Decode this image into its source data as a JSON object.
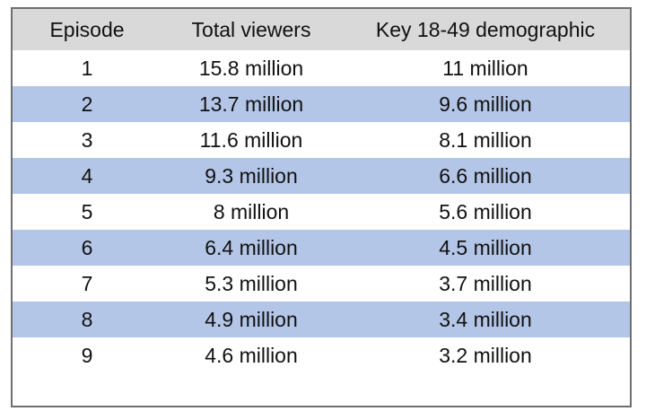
{
  "table": {
    "headers": [
      "Episode",
      "Total viewers",
      "Key 18-49 demographic"
    ],
    "rows": [
      [
        "1",
        "15.8 million",
        "11 million"
      ],
      [
        "2",
        "13.7 million",
        "9.6 million"
      ],
      [
        "3",
        "11.6 million",
        "8.1 million"
      ],
      [
        "4",
        "9.3 million",
        "6.6 million"
      ],
      [
        "5",
        "8 million",
        "5.6 million"
      ],
      [
        "6",
        "6.4 million",
        "4.5 million"
      ],
      [
        "7",
        "5.3 million",
        "3.7 million"
      ],
      [
        "8",
        "4.9 million",
        "3.4 million"
      ],
      [
        "9",
        "4.6 million",
        "3.2 million"
      ]
    ]
  },
  "colors": {
    "header_bg": "#d9d9d9",
    "alt_row_bg": "#b4c6e7",
    "border": "#6f6f6f"
  }
}
